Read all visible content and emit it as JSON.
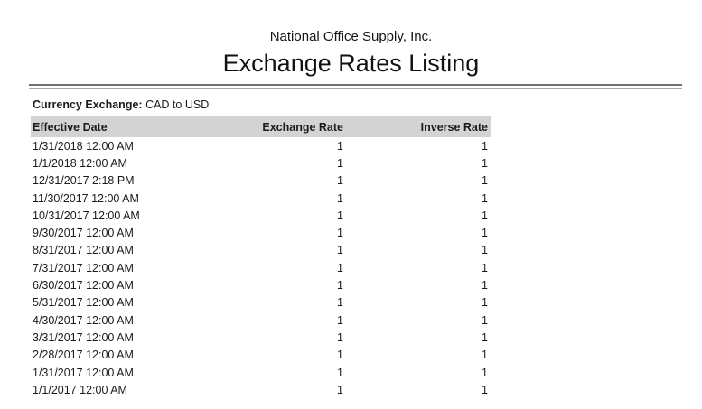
{
  "report": {
    "company_name": "National Office Supply, Inc.",
    "title": "Exchange Rates Listing",
    "filter_label": "Currency Exchange:",
    "filter_value": "CAD to USD"
  },
  "colors": {
    "header_bar_bg": "#d3d3d3",
    "rule_dark": "#707070",
    "rule_light": "#a9a9a9",
    "text": "#1b1b1b"
  },
  "table": {
    "columns": [
      "Effective Date",
      "Exchange Rate",
      "Inverse Rate"
    ],
    "rows": [
      {
        "effective_date": "1/31/2018 12:00 AM",
        "exchange_rate": "1",
        "inverse_rate": "1"
      },
      {
        "effective_date": "1/1/2018 12:00 AM",
        "exchange_rate": "1",
        "inverse_rate": "1"
      },
      {
        "effective_date": "12/31/2017 2:18 PM",
        "exchange_rate": "1",
        "inverse_rate": "1"
      },
      {
        "effective_date": "11/30/2017 12:00 AM",
        "exchange_rate": "1",
        "inverse_rate": "1"
      },
      {
        "effective_date": "10/31/2017 12:00 AM",
        "exchange_rate": "1",
        "inverse_rate": "1"
      },
      {
        "effective_date": "9/30/2017 12:00 AM",
        "exchange_rate": "1",
        "inverse_rate": "1"
      },
      {
        "effective_date": "8/31/2017 12:00 AM",
        "exchange_rate": "1",
        "inverse_rate": "1"
      },
      {
        "effective_date": "7/31/2017 12:00 AM",
        "exchange_rate": "1",
        "inverse_rate": "1"
      },
      {
        "effective_date": "6/30/2017 12:00 AM",
        "exchange_rate": "1",
        "inverse_rate": "1"
      },
      {
        "effective_date": "5/31/2017 12:00 AM",
        "exchange_rate": "1",
        "inverse_rate": "1"
      },
      {
        "effective_date": "4/30/2017 12:00 AM",
        "exchange_rate": "1",
        "inverse_rate": "1"
      },
      {
        "effective_date": "3/31/2017 12:00 AM",
        "exchange_rate": "1",
        "inverse_rate": "1"
      },
      {
        "effective_date": "2/28/2017 12:00 AM",
        "exchange_rate": "1",
        "inverse_rate": "1"
      },
      {
        "effective_date": "1/31/2017 12:00 AM",
        "exchange_rate": "1",
        "inverse_rate": "1"
      },
      {
        "effective_date": "1/1/2017 12:00 AM",
        "exchange_rate": "1",
        "inverse_rate": "1"
      }
    ]
  }
}
